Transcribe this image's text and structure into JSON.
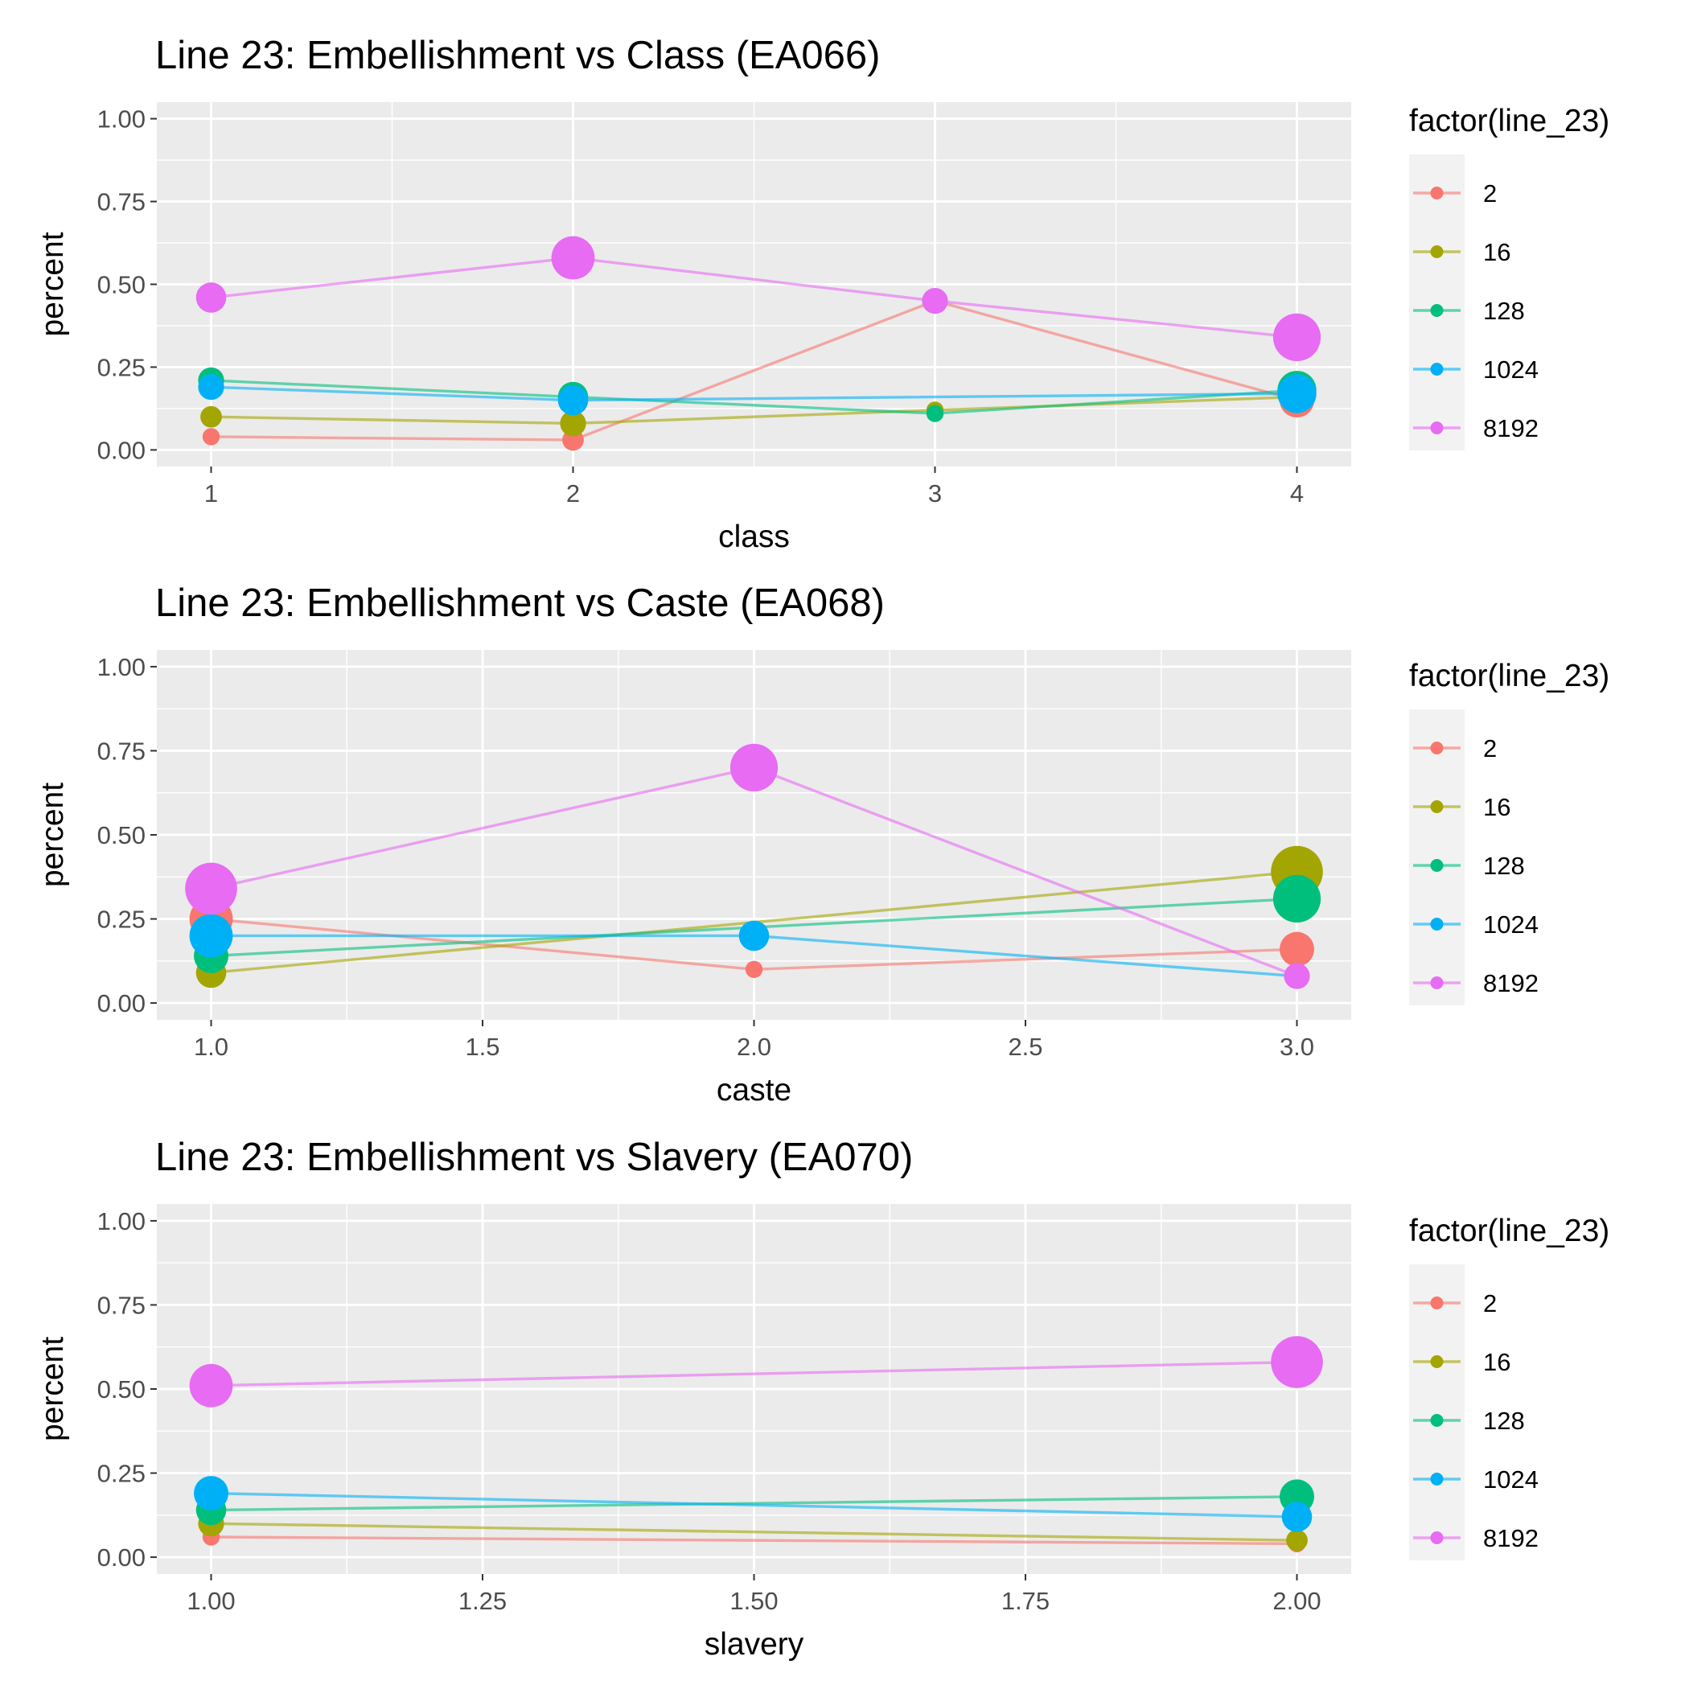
{
  "legend_title": "factor(line_23)",
  "series_colors": {
    "2": "#F8766D",
    "16": "#A3A500",
    "128": "#00BF7D",
    "1024": "#00B0F6",
    "8192": "#E76BF3"
  },
  "chart_data": [
    {
      "type": "line",
      "title": "Line 23: Embellishment vs Class (EA066)",
      "xlabel": "class",
      "ylabel": "percent",
      "xlim": [
        0.85,
        4.15
      ],
      "ylim": [
        -0.05,
        1.05
      ],
      "xticks": [
        1,
        2,
        3,
        4
      ],
      "xtick_labels": [
        "1",
        "2",
        "3",
        "4"
      ],
      "yticks": [
        0,
        0.25,
        0.5,
        0.75,
        1.0
      ],
      "ytick_labels": [
        "0.00",
        "0.25",
        "0.50",
        "0.75",
        "1.00"
      ],
      "grid": true,
      "legend_position": "right",
      "series": [
        {
          "name": "2",
          "x": [
            1,
            2,
            3,
            4
          ],
          "values": [
            0.04,
            0.03,
            0.45,
            0.15
          ],
          "sizes": [
            1,
            2,
            1,
            5
          ]
        },
        {
          "name": "16",
          "x": [
            1,
            2,
            3,
            4
          ],
          "values": [
            0.1,
            0.08,
            0.12,
            0.16
          ],
          "sizes": [
            2,
            3,
            1,
            4
          ]
        },
        {
          "name": "128",
          "x": [
            1,
            2,
            3,
            4
          ],
          "values": [
            0.21,
            0.16,
            0.11,
            0.18
          ],
          "sizes": [
            3,
            4,
            1,
            6
          ]
        },
        {
          "name": "1024",
          "x": [
            1,
            2,
            3,
            4
          ],
          "values": [
            0.19,
            0.15,
            null,
            0.17
          ],
          "sizes": [
            3,
            4,
            0,
            6
          ]
        },
        {
          "name": "8192",
          "x": [
            1,
            2,
            3,
            4
          ],
          "values": [
            0.46,
            0.58,
            0.45,
            0.34
          ],
          "sizes": [
            4,
            7,
            3,
            8
          ]
        }
      ]
    },
    {
      "type": "line",
      "title": "Line 23: Embellishment vs Caste (EA068)",
      "xlabel": "caste",
      "ylabel": "percent",
      "xlim": [
        0.9,
        3.1
      ],
      "ylim": [
        -0.05,
        1.05
      ],
      "xticks": [
        1.0,
        1.5,
        2.0,
        2.5,
        3.0
      ],
      "xtick_labels": [
        "1.0",
        "1.5",
        "2.0",
        "2.5",
        "3.0"
      ],
      "yticks": [
        0,
        0.25,
        0.5,
        0.75,
        1.0
      ],
      "ytick_labels": [
        "0.00",
        "0.25",
        "0.50",
        "0.75",
        "1.00"
      ],
      "grid": true,
      "legend_position": "right",
      "series": [
        {
          "name": "2",
          "x": [
            1,
            2,
            3
          ],
          "values": [
            0.25,
            0.1,
            0.16
          ],
          "sizes": [
            7,
            1,
            5
          ]
        },
        {
          "name": "16",
          "x": [
            1,
            3
          ],
          "values": [
            0.09,
            0.39
          ],
          "sizes": [
            4,
            9
          ]
        },
        {
          "name": "128",
          "x": [
            1,
            3
          ],
          "values": [
            0.14,
            0.31
          ],
          "sizes": [
            5,
            8
          ]
        },
        {
          "name": "1024",
          "x": [
            1,
            2,
            3
          ],
          "values": [
            0.2,
            0.2,
            0.08
          ],
          "sizes": [
            7,
            4,
            0
          ]
        },
        {
          "name": "8192",
          "x": [
            1,
            2,
            3
          ],
          "values": [
            0.34,
            0.7,
            0.08
          ],
          "sizes": [
            9,
            8,
            3
          ]
        }
      ]
    },
    {
      "type": "line",
      "title": "Line 23: Embellishment vs Slavery (EA070)",
      "xlabel": "slavery",
      "ylabel": "percent",
      "xlim": [
        0.95,
        2.05
      ],
      "ylim": [
        -0.05,
        1.05
      ],
      "xticks": [
        1.0,
        1.25,
        1.5,
        1.75,
        2.0
      ],
      "xtick_labels": [
        "1.00",
        "1.25",
        "1.50",
        "1.75",
        "2.00"
      ],
      "yticks": [
        0,
        0.25,
        0.5,
        0.75,
        1.0
      ],
      "ytick_labels": [
        "0.00",
        "0.25",
        "0.50",
        "0.75",
        "1.00"
      ],
      "grid": true,
      "legend_position": "right",
      "series": [
        {
          "name": "2",
          "x": [
            1,
            2
          ],
          "values": [
            0.06,
            0.04
          ],
          "sizes": [
            1,
            1
          ]
        },
        {
          "name": "16",
          "x": [
            1,
            2
          ],
          "values": [
            0.1,
            0.05
          ],
          "sizes": [
            3,
            2
          ]
        },
        {
          "name": "128",
          "x": [
            1,
            2
          ],
          "values": [
            0.14,
            0.18
          ],
          "sizes": [
            4,
            5
          ]
        },
        {
          "name": "1024",
          "x": [
            1,
            2
          ],
          "values": [
            0.19,
            0.12
          ],
          "sizes": [
            5,
            4
          ]
        },
        {
          "name": "8192",
          "x": [
            1,
            2
          ],
          "values": [
            0.51,
            0.58
          ],
          "sizes": [
            7,
            9
          ]
        }
      ]
    }
  ]
}
